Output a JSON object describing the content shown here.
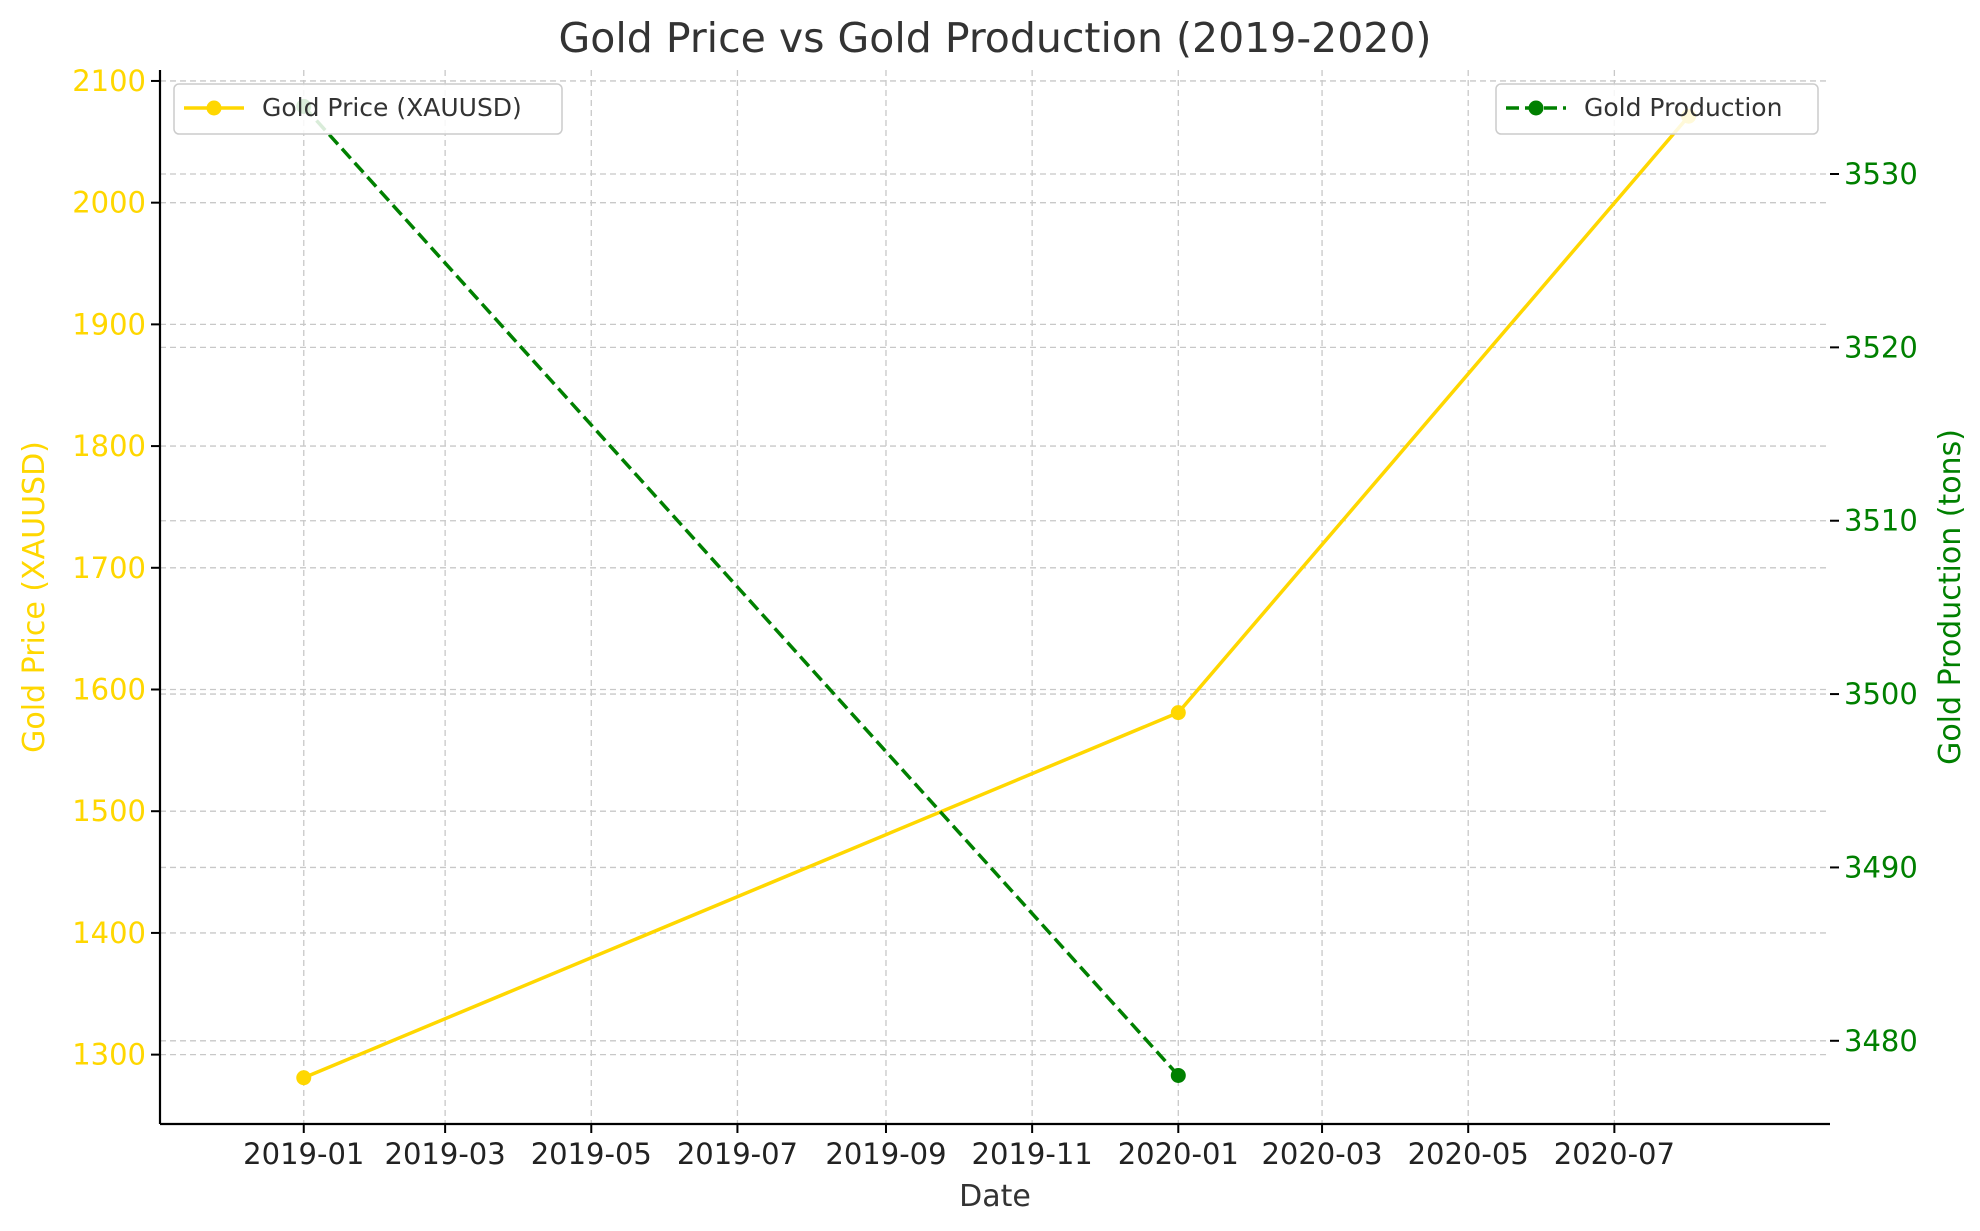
{
  "chart_data": {
    "type": "line",
    "title": "Gold Price vs Gold Production (2019-2020)",
    "xlabel": "Date",
    "x_ticks": [
      "2019-01",
      "2019-03",
      "2019-05",
      "2019-07",
      "2019-09",
      "2019-11",
      "2020-01",
      "2020-03",
      "2020-05",
      "2020-07"
    ],
    "x_range": [
      "2018-11-02",
      "2020-09-29"
    ],
    "grid": true,
    "y_left": {
      "label": "Gold Price (XAUUSD)",
      "color": "#FFD700",
      "range": [
        1243,
        2109
      ],
      "ticks": [
        1300,
        1400,
        1500,
        1600,
        1700,
        1800,
        1900,
        2000,
        2100
      ]
    },
    "y_right": {
      "label": "Gold Production (tons)",
      "color": "#008000",
      "range": [
        3475.2,
        3536.0
      ],
      "ticks": [
        3480,
        3490,
        3500,
        3510,
        3520,
        3530
      ]
    },
    "series": [
      {
        "name": "Gold Price (XAUUSD)",
        "axis": "left",
        "color": "#FFD700",
        "line_style": "solid",
        "marker": "circle",
        "x": [
          "2019-01-01",
          "2020-01-01",
          "2020-08-01"
        ],
        "y": [
          1281,
          1581,
          2071
        ]
      },
      {
        "name": "Gold Production",
        "axis": "right",
        "color": "#008000",
        "line_style": "dashed",
        "marker": "circle",
        "x": [
          "2019-01-01",
          "2020-01-01"
        ],
        "y": [
          3533.9,
          3478.0
        ]
      }
    ],
    "legends": [
      {
        "position": "upper-left",
        "series": "Gold Price (XAUUSD)"
      },
      {
        "position": "upper-right",
        "series": "Gold Production"
      }
    ]
  }
}
